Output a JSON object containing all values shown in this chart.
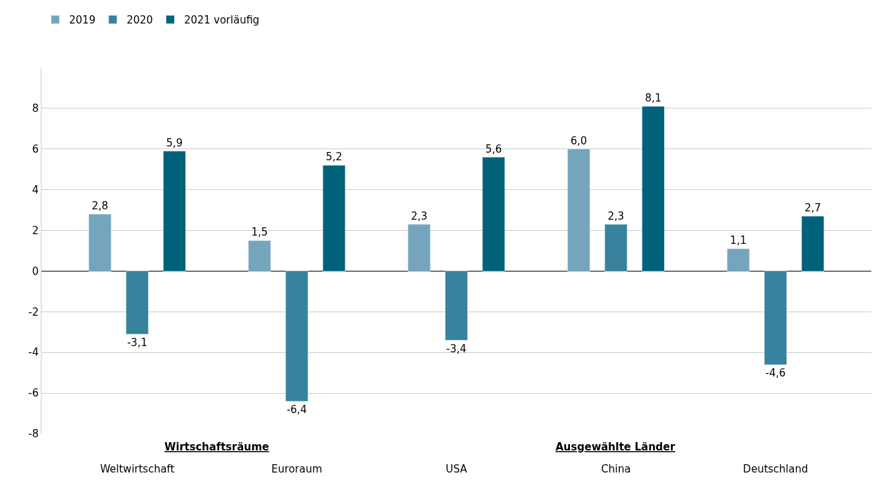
{
  "chart_data": {
    "type": "bar",
    "categories": [
      "Weltwirtschaft",
      "Euroraum",
      "USA",
      "China",
      "Deutschland"
    ],
    "series": [
      {
        "name": "2019",
        "color": "#74a5bd",
        "values": [
          2.8,
          1.5,
          2.3,
          6.0,
          1.1
        ],
        "value_labels": [
          "2,8",
          "1,5",
          "2,3",
          "6,0",
          "1,1"
        ]
      },
      {
        "name": "2020",
        "color": "#37829c",
        "values": [
          -3.1,
          -6.4,
          -3.4,
          2.3,
          -4.6
        ],
        "value_labels": [
          "-3,1",
          "-6,4",
          "-3,4",
          "2,3",
          "-4,6"
        ]
      },
      {
        "name": "2021 vorläufig",
        "color": "#00627a",
        "values": [
          5.9,
          5.2,
          5.6,
          8.1,
          2.7
        ],
        "value_labels": [
          "5,9",
          "5,2",
          "5,6",
          "8,1",
          "2,7"
        ]
      }
    ],
    "ylim": [
      -8,
      10
    ],
    "yticks": [
      -8,
      -6,
      -4,
      -2,
      0,
      2,
      4,
      6,
      8
    ],
    "grid": "y",
    "legend": "top left",
    "annotations": [
      "Wirtschaftsräume",
      "Ausgewählte Länder"
    ]
  }
}
